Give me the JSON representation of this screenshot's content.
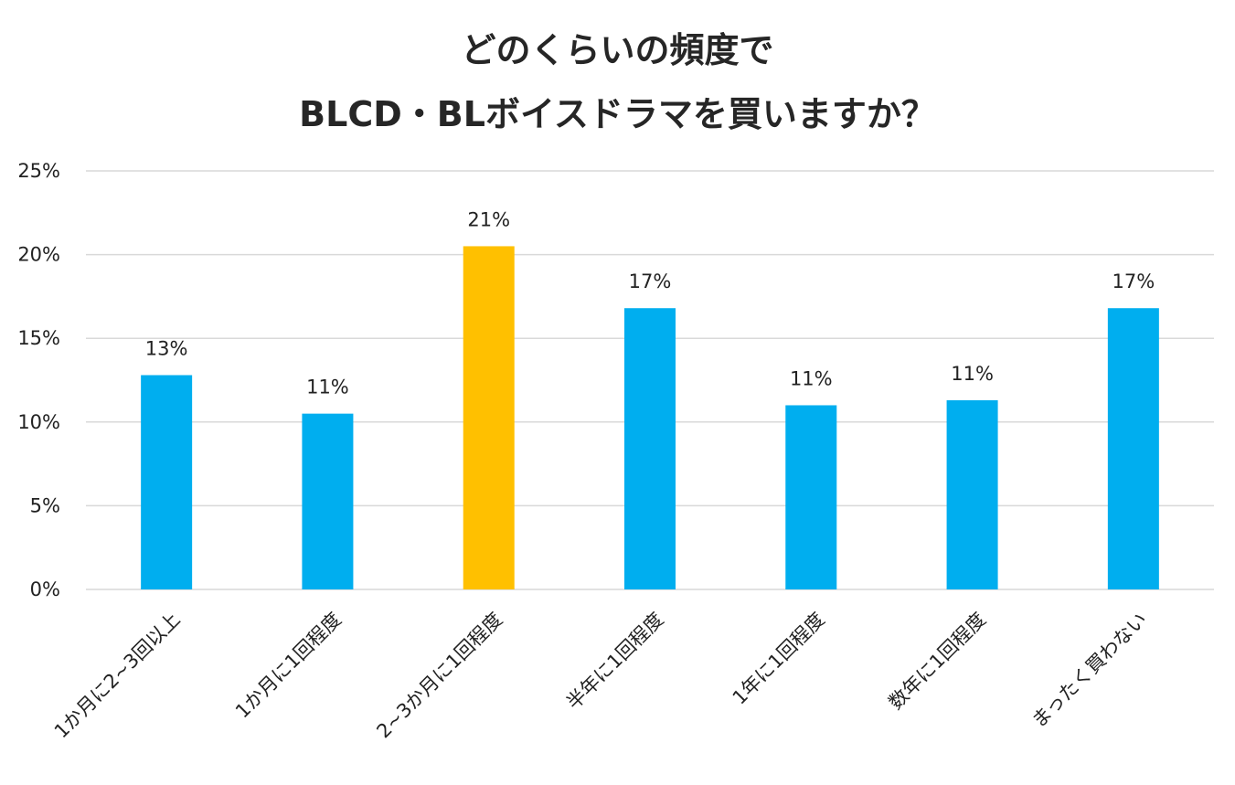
{
  "chart_data": {
    "type": "bar",
    "title_lines": [
      "どのくらいの頻度で",
      "BLCD・BLボイスドラマを買いますか？"
    ],
    "categories": [
      "1か月に2~3回以上",
      "1か月に1回程度",
      "2~3か月に1回程度",
      "半年に1回程度",
      "1年に1回程度",
      "数年に1回程度",
      "まったく買わない"
    ],
    "values": [
      12.8,
      10.5,
      20.5,
      16.8,
      11.0,
      11.3,
      16.8
    ],
    "data_labels": [
      "13%",
      "11%",
      "21%",
      "17%",
      "11%",
      "11%",
      "17%"
    ],
    "ylim": [
      0,
      25
    ],
    "yticks": [
      0,
      5,
      10,
      15,
      20,
      25
    ],
    "ytick_labels": [
      "0%",
      "5%",
      "10%",
      "15%",
      "20%",
      "25%"
    ],
    "xlabel": "",
    "ylabel": "",
    "grid": true,
    "highlight_index": 2,
    "colors": {
      "bar": "#00AEEF",
      "highlight": "#FFC000",
      "grid": "#D9D9D9",
      "text": "#222222"
    }
  }
}
